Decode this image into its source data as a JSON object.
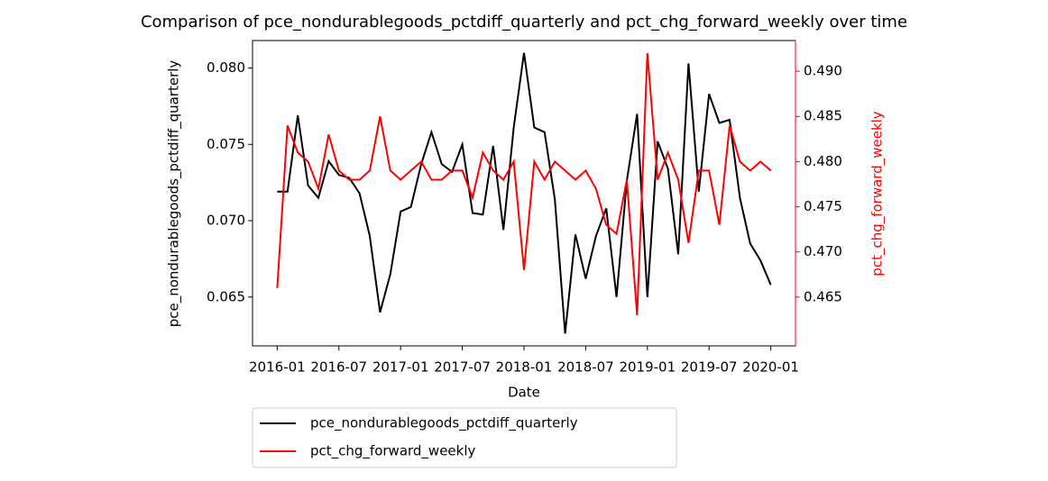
{
  "chart_data": {
    "type": "line",
    "title": "Comparison of pce_nondurablegoods_pctdiff_quarterly and pct_chg_forward_weekly over time",
    "xlabel": "Date",
    "ylabel": "pce_nondurablegoods_pctdiff_quarterly",
    "y2label": "pct_chg_forward_weekly",
    "x": [
      "2016-01",
      "2016-02",
      "2016-03",
      "2016-04",
      "2016-05",
      "2016-06",
      "2016-07",
      "2016-08",
      "2016-09",
      "2016-10",
      "2016-11",
      "2016-12",
      "2017-01",
      "2017-02",
      "2017-03",
      "2017-04",
      "2017-05",
      "2017-06",
      "2017-07",
      "2017-08",
      "2017-09",
      "2017-10",
      "2017-11",
      "2017-12",
      "2018-01",
      "2018-02",
      "2018-03",
      "2018-04",
      "2018-05",
      "2018-06",
      "2018-07",
      "2018-08",
      "2018-09",
      "2018-10",
      "2018-11",
      "2018-12",
      "2019-01",
      "2019-02",
      "2019-03",
      "2019-04",
      "2019-05",
      "2019-06",
      "2019-07",
      "2019-08",
      "2019-09",
      "2019-10",
      "2019-11",
      "2019-12",
      "2020-01"
    ],
    "xticks": [
      "2016-01",
      "2016-07",
      "2017-01",
      "2017-07",
      "2018-01",
      "2018-07",
      "2019-01",
      "2019-07",
      "2020-01"
    ],
    "ylim": [
      0.0618,
      0.0818
    ],
    "yticks": [
      0.065,
      {
        "value": 0.07,
        "label": "0.070"
      },
      0.075,
      {
        "value": 0.08,
        "label": "0.080"
      }
    ],
    "y2lim": [
      0.4596,
      0.4934
    ],
    "y2ticks": [
      0.465,
      {
        "value": 0.47,
        "label": "0.470"
      },
      0.475,
      {
        "value": 0.48,
        "label": "0.480"
      },
      0.485,
      {
        "value": 0.49,
        "label": "0.490"
      }
    ],
    "legend": "below",
    "series": [
      {
        "name": "pce_nondurablegoods_pctdiff_quarterly",
        "color": "#000000",
        "values": [
          0.0719,
          0.0719,
          0.0769,
          0.0723,
          0.0715,
          0.0739,
          0.073,
          0.0728,
          0.0718,
          0.069,
          0.064,
          0.0665,
          0.0706,
          0.0709,
          0.0737,
          0.0758,
          0.0737,
          0.0732,
          0.075,
          0.0705,
          0.0704,
          0.0749,
          0.0694,
          0.0761,
          0.081,
          0.0761,
          0.0758,
          0.0714,
          0.0626,
          0.0691,
          0.0662,
          0.069,
          0.0708,
          0.065,
          0.0726,
          0.077,
          0.065,
          0.0752,
          0.0734,
          0.0678,
          0.0803,
          0.0719,
          0.0783,
          0.0764,
          0.0766,
          0.0715,
          0.0685,
          0.0674,
          0.0658
        ]
      },
      {
        "name": "pct_chg_forward_weekly",
        "color": "#ff0000",
        "axis": "y2",
        "values": [
          0.466,
          0.484,
          0.481,
          0.48,
          0.477,
          0.483,
          0.479,
          0.478,
          0.478,
          0.479,
          0.485,
          0.479,
          0.478,
          0.479,
          0.48,
          0.478,
          0.478,
          0.479,
          0.479,
          0.476,
          0.481,
          0.479,
          0.478,
          0.48,
          0.468,
          0.48,
          0.478,
          0.48,
          0.479,
          0.478,
          0.479,
          0.477,
          0.473,
          0.472,
          0.478,
          0.463,
          0.492,
          0.478,
          0.481,
          0.478,
          0.471,
          0.479,
          0.479,
          0.473,
          0.484,
          0.48,
          0.479,
          0.48,
          0.479
        ]
      }
    ]
  }
}
